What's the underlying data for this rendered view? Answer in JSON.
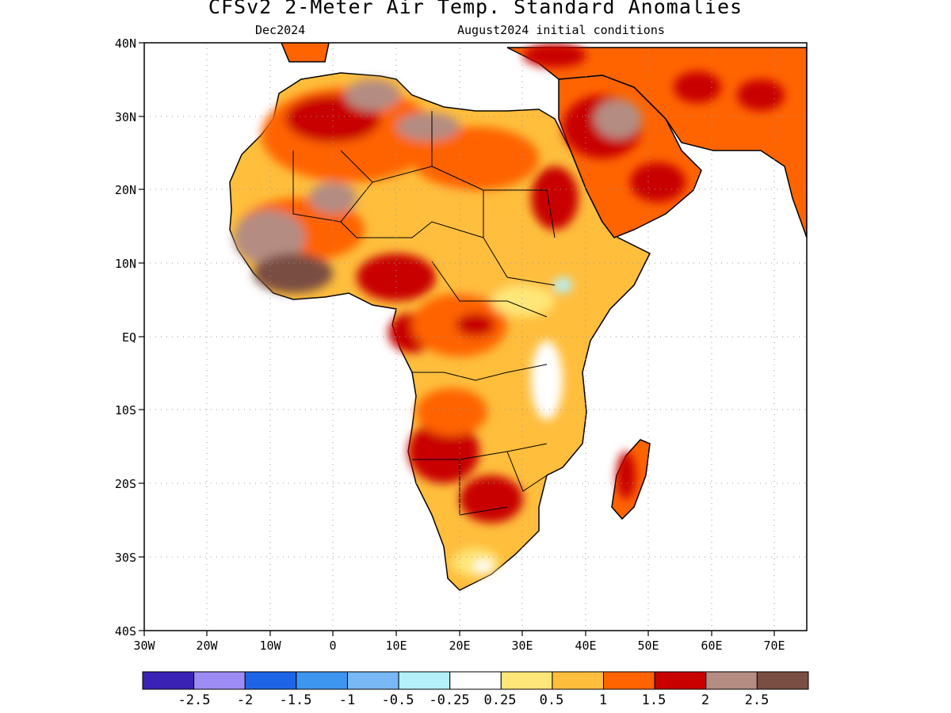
{
  "title": "CFSv2 2-Meter Air Temp. Standard Anomalies",
  "subtitle_left": "Dec2024",
  "subtitle_right": "August2024 initial conditions",
  "map": {
    "lat_labels": [
      "40N",
      "30N",
      "20N",
      "10N",
      "EQ",
      "10S",
      "20S",
      "30S",
      "40S"
    ],
    "lon_labels": [
      "30W",
      "20W",
      "10W",
      "0",
      "10E",
      "20E",
      "30E",
      "40E",
      "50E",
      "60E",
      "70E"
    ],
    "lat_range": [
      -40,
      40
    ],
    "lon_range": [
      -30,
      75
    ],
    "gridlines": "dotted",
    "ocean_color": "#ffffff",
    "coastline_color": "#000000"
  },
  "colorbar": {
    "colors": [
      "#3a22b4",
      "#9e8cf5",
      "#1e64e6",
      "#3c96f0",
      "#78b9f5",
      "#b4f0fa",
      "#ffffff",
      "#ffe678",
      "#ffbe3c",
      "#ff6400",
      "#c80000",
      "#b48c82",
      "#7a4e42"
    ],
    "labels": [
      "-2.5",
      "-2",
      "-1.5",
      "-1",
      "-0.5",
      "-0.25",
      "0.25",
      "0.5",
      "1",
      "1.5",
      "2",
      "2.5"
    ]
  }
}
